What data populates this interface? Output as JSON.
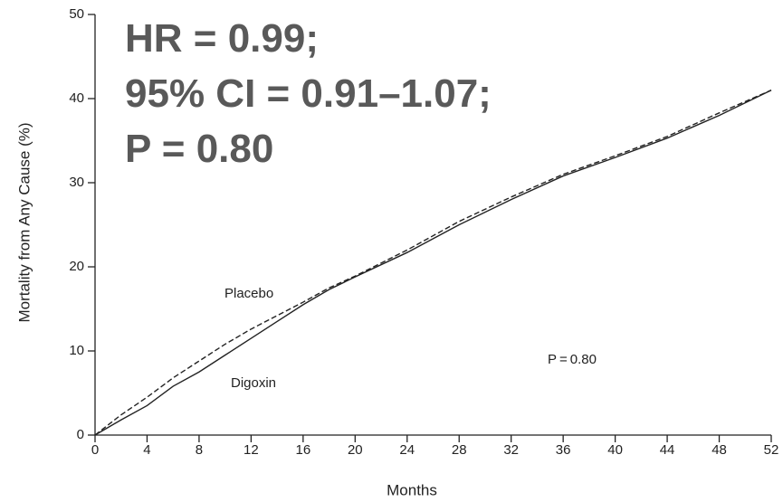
{
  "chart_data": {
    "type": "line",
    "x_label": "Months",
    "y_label": "Mortality from Any Cause (%)",
    "x": [
      0,
      2,
      4,
      6,
      8,
      10,
      12,
      14,
      16,
      18,
      20,
      24,
      28,
      32,
      36,
      40,
      44,
      48,
      52
    ],
    "series": [
      {
        "name": "Digoxin",
        "color": "#222222",
        "dash": false,
        "values": [
          0,
          1.8,
          3.5,
          5.8,
          7.5,
          9.5,
          11.5,
          13.5,
          15.5,
          17.3,
          18.8,
          21.7,
          25,
          28,
          30.8,
          33,
          35.3,
          38,
          41
        ]
      },
      {
        "name": "Placebo",
        "color": "#222222",
        "dash": true,
        "values": [
          0,
          2.4,
          4.5,
          6.8,
          8.8,
          10.8,
          12.6,
          14.2,
          15.8,
          17.5,
          18.9,
          22,
          25.4,
          28.3,
          31,
          33.2,
          35.5,
          38.3,
          41
        ]
      }
    ],
    "annotations": [
      "HR = 0.99;",
      "95% CI = 0.91–1.07;",
      "P = 0.80",
      "P = 0.80"
    ],
    "xlim": [
      0,
      52
    ],
    "xticks": [
      0,
      4,
      8,
      12,
      16,
      20,
      24,
      28,
      32,
      36,
      40,
      44,
      48,
      52
    ],
    "ylim": [
      0,
      50
    ],
    "yticks": [
      0,
      10,
      20,
      30,
      40,
      50
    ],
    "grid": false
  }
}
